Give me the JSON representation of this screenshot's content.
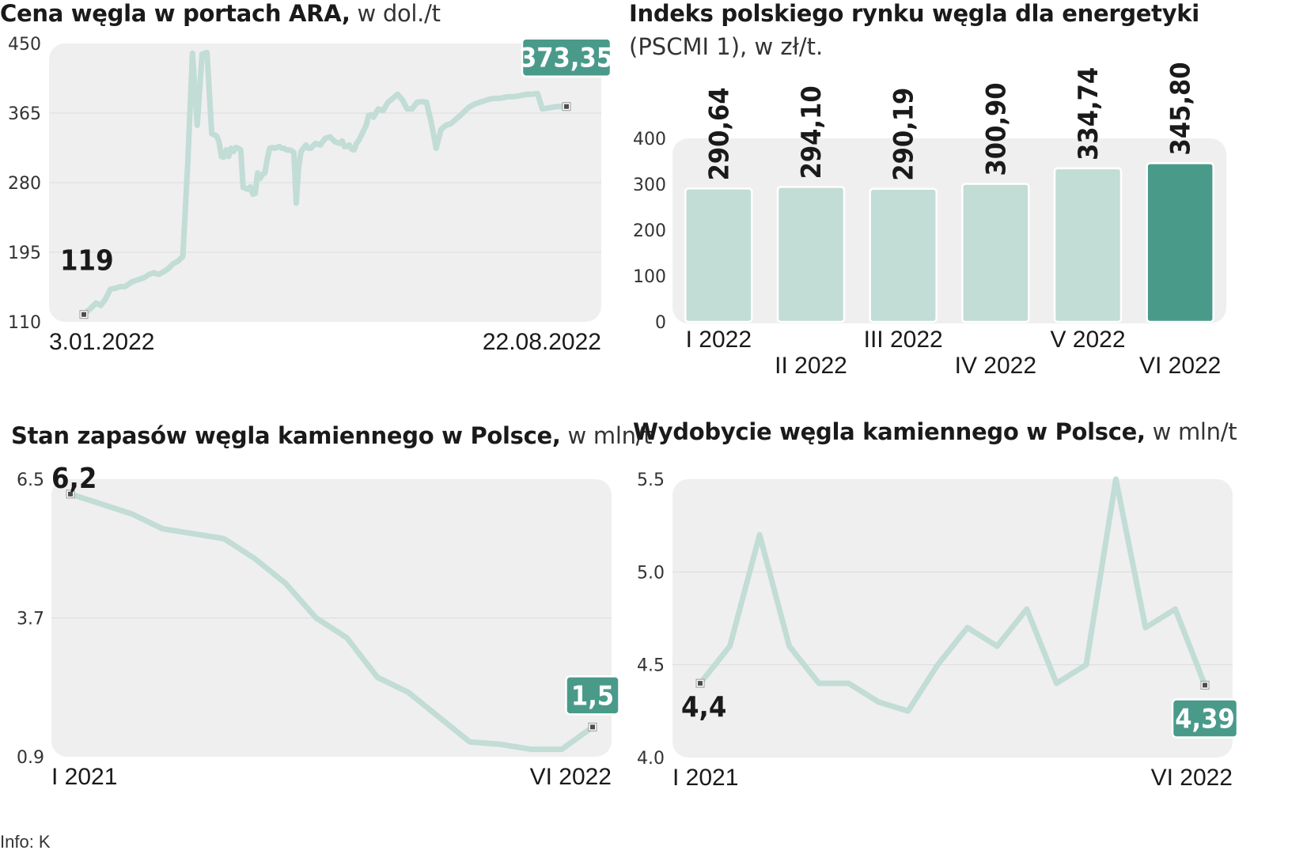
{
  "colors": {
    "line": "#c2dcd6",
    "bar": "#c2dcd6",
    "bar_highlight": "#4a9a8a",
    "badge": "#4a9a8a",
    "plot_bg": "#efefef",
    "grid": "#dcdcdc",
    "marker": "#4d4d4d"
  },
  "source": "Info: K",
  "chart_data": [
    {
      "id": "ara",
      "type": "line",
      "title": "Cena węgla w portach ARA,",
      "unit": "w dol./t",
      "ylim": [
        110,
        450
      ],
      "yticks": [
        "450",
        "365",
        "280",
        "195",
        "110"
      ],
      "ytick_values": [
        450,
        365,
        280,
        195,
        110
      ],
      "x_range": [
        0,
        100
      ],
      "x_start_label": "3.01.2022",
      "x_end_label": "22.08.2022",
      "start_label": "119",
      "end_label": "373,35",
      "x": [
        0,
        1.5,
        2.5,
        3.5,
        4.5,
        5.5,
        6.5,
        7.5,
        8.5,
        10,
        11.5,
        12.5,
        13.5,
        14.5,
        15.5,
        16.5,
        17.5,
        18.5,
        19.5,
        20.5,
        21.5,
        22.5,
        23.5,
        24.5,
        25.5,
        26.5,
        27.5,
        28,
        28.5,
        29,
        29.5,
        30,
        30.5,
        31,
        31.5,
        32,
        32.5,
        33,
        33.5,
        34,
        34.5,
        35,
        35.5,
        36,
        36.5,
        37,
        37.5,
        38,
        38.5,
        39,
        39.5,
        40,
        40.5,
        41,
        41.5,
        42,
        42.5,
        43,
        43.5,
        44,
        44.5,
        45,
        45.5,
        46,
        46.5,
        47,
        48,
        49,
        50,
        51,
        52,
        53,
        53.5,
        54,
        54.5,
        55,
        55.5,
        56,
        56.5,
        57,
        57.5,
        58,
        58.5,
        59,
        59.5,
        60,
        61,
        62,
        63,
        64,
        65,
        66,
        67,
        68,
        69,
        70,
        71,
        72,
        73,
        74,
        75,
        76,
        77,
        78,
        79,
        80,
        81,
        82,
        83,
        84,
        85,
        86,
        87,
        88,
        89,
        90,
        91,
        92,
        93,
        94,
        95,
        96,
        97,
        98,
        99,
        100
      ],
      "values": [
        119,
        127,
        133,
        130,
        138,
        150,
        151,
        153,
        153,
        159,
        162,
        164,
        168,
        170,
        168,
        171,
        175,
        181,
        184,
        190,
        302,
        438,
        350,
        437,
        439,
        340,
        337,
        330,
        312,
        311,
        320,
        312,
        322,
        318,
        323,
        322,
        320,
        274,
        273,
        272,
        275,
        266,
        267,
        292,
        285,
        290,
        292,
        309,
        322,
        323,
        322,
        323,
        324,
        322,
        322,
        320,
        320,
        319,
        317,
        255,
        299,
        318,
        322,
        326,
        322,
        322,
        328,
        326,
        334,
        336,
        330,
        328,
        331,
        324,
        324,
        326,
        321,
        320,
        328,
        332,
        338,
        344,
        350,
        362,
        363,
        360,
        370,
        368,
        378,
        383,
        388,
        381,
        370,
        370,
        378,
        379,
        378,
        353,
        322,
        345,
        350,
        352,
        357,
        362,
        368,
        373,
        376,
        378,
        380,
        382,
        383,
        383,
        384,
        385,
        385,
        386,
        387,
        388,
        388,
        389,
        370,
        371,
        372,
        373,
        373,
        373
      ]
    },
    {
      "id": "pscmi",
      "type": "bar",
      "title": "Indeks polskiego rynku węgla dla energetyki",
      "subtitle": "(PSCMI 1), w zł/t.",
      "ylim": [
        0,
        400
      ],
      "yticks": [
        "400",
        "300",
        "200",
        "100",
        "0"
      ],
      "ytick_values": [
        400,
        300,
        200,
        100,
        0
      ],
      "categories": [
        "I 2022",
        "II 2022",
        "III 2022",
        "IV 2022",
        "V 2022",
        "VI 2022"
      ],
      "values": [
        290.64,
        294.1,
        290.19,
        300.9,
        334.74,
        345.8
      ],
      "value_labels": [
        "290,64",
        "294,10",
        "290,19",
        "300,90",
        "334,74",
        "345,80"
      ],
      "highlight_index": 5
    },
    {
      "id": "zapasy",
      "type": "line",
      "title": "Stan zapasów węgla kamiennego w Polsce,",
      "unit": "w mln/t",
      "ylim": [
        0.9,
        6.5
      ],
      "yticks": [
        "6.5",
        "3.7",
        "0.9"
      ],
      "ytick_values": [
        6.5,
        3.7,
        0.9
      ],
      "x_range": [
        0,
        17
      ],
      "x_start_label": "I 2021",
      "x_end_label": "VI 2022",
      "start_label": "6,2",
      "end_label": "1,5",
      "x": [
        0,
        1,
        2,
        3,
        4,
        5,
        6,
        7,
        8,
        9,
        10,
        11,
        12,
        13,
        14,
        15,
        16,
        17
      ],
      "values": [
        6.2,
        6.0,
        5.8,
        5.5,
        5.4,
        5.3,
        4.9,
        4.4,
        3.7,
        3.3,
        2.5,
        2.2,
        1.7,
        1.2,
        1.15,
        1.05,
        1.05,
        1.5
      ]
    },
    {
      "id": "wydobycie",
      "type": "line",
      "title": "Wydobycie węgla kamiennego w Polsce,",
      "unit": "w mln/t",
      "ylim": [
        4.0,
        5.5
      ],
      "yticks": [
        "5.5",
        "5.0",
        "4.5",
        "4.0"
      ],
      "ytick_values": [
        5.5,
        5.0,
        4.5,
        4.0
      ],
      "x_range": [
        0,
        17
      ],
      "x_start_label": "I 2021",
      "x_end_label": "VI 2022",
      "start_label": "4,4",
      "end_label": "4,39",
      "x": [
        0,
        1,
        2,
        3,
        4,
        5,
        6,
        7,
        8,
        9,
        10,
        11,
        12,
        13,
        14,
        15,
        16,
        17
      ],
      "values": [
        4.4,
        4.6,
        5.2,
        4.6,
        4.4,
        4.4,
        4.3,
        4.25,
        4.5,
        4.7,
        4.6,
        4.8,
        4.4,
        4.5,
        5.5,
        4.7,
        4.8,
        4.39
      ]
    }
  ]
}
